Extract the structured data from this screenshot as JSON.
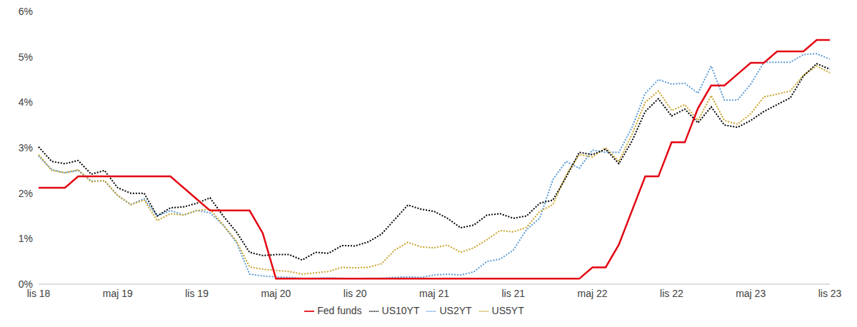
{
  "chart_data": {
    "type": "line",
    "categories": [
      "lis 18",
      null,
      null,
      null,
      null,
      null,
      "maj 19",
      null,
      null,
      null,
      null,
      null,
      "lis 19",
      null,
      null,
      null,
      null,
      null,
      "maj 20",
      null,
      null,
      null,
      null,
      null,
      "lis 20",
      null,
      null,
      null,
      null,
      null,
      "maj 21",
      null,
      null,
      null,
      null,
      null,
      "lis 21",
      null,
      null,
      null,
      null,
      null,
      "maj 22",
      null,
      null,
      null,
      null,
      null,
      "lis 22",
      null,
      null,
      null,
      null,
      null,
      "maj 23",
      null,
      null,
      null,
      null,
      null,
      "lis 23"
    ],
    "series": [
      {
        "name": "US2YT",
        "color": "#5b9bd5",
        "line_style": "dotted",
        "values": [
          2.82,
          2.52,
          2.45,
          2.5,
          2.27,
          2.27,
          1.95,
          1.75,
          1.88,
          1.5,
          1.62,
          1.52,
          1.62,
          1.57,
          1.3,
          0.92,
          0.22,
          0.18,
          0.16,
          0.15,
          0.13,
          0.13,
          0.14,
          0.13,
          0.12,
          0.13,
          0.13,
          0.15,
          0.16,
          0.15,
          0.2,
          0.22,
          0.2,
          0.27,
          0.5,
          0.55,
          0.75,
          1.2,
          1.45,
          2.3,
          2.7,
          2.55,
          2.95,
          2.9,
          2.9,
          3.45,
          4.2,
          4.5,
          4.4,
          4.42,
          4.2,
          4.8,
          4.05,
          4.05,
          4.4,
          4.88,
          4.88,
          4.88,
          5.05,
          5.07,
          4.95
        ]
      },
      {
        "name": "US5YT",
        "color": "#c9a227",
        "line_style": "dotted",
        "values": [
          2.85,
          2.5,
          2.45,
          2.52,
          2.25,
          2.28,
          1.95,
          1.75,
          1.85,
          1.4,
          1.55,
          1.52,
          1.62,
          1.65,
          1.3,
          0.95,
          0.38,
          0.33,
          0.3,
          0.28,
          0.22,
          0.25,
          0.28,
          0.37,
          0.36,
          0.37,
          0.45,
          0.75,
          0.92,
          0.82,
          0.8,
          0.86,
          0.7,
          0.8,
          0.98,
          1.18,
          1.15,
          1.25,
          1.6,
          1.75,
          2.4,
          2.85,
          2.8,
          3.0,
          2.7,
          3.3,
          4.0,
          4.25,
          3.82,
          3.95,
          3.6,
          4.15,
          3.6,
          3.52,
          3.75,
          4.12,
          4.18,
          4.25,
          4.6,
          4.8,
          4.65
        ]
      },
      {
        "name": "US10YT",
        "color": "#000000",
        "line_style": "dotted",
        "values": [
          3.02,
          2.7,
          2.65,
          2.72,
          2.42,
          2.5,
          2.12,
          2.0,
          2.0,
          1.5,
          1.68,
          1.7,
          1.78,
          1.9,
          1.5,
          1.15,
          0.7,
          0.63,
          0.65,
          0.65,
          0.53,
          0.7,
          0.68,
          0.85,
          0.84,
          0.93,
          1.1,
          1.42,
          1.74,
          1.65,
          1.6,
          1.45,
          1.24,
          1.3,
          1.52,
          1.55,
          1.45,
          1.5,
          1.78,
          1.85,
          2.35,
          2.9,
          2.85,
          2.97,
          2.65,
          3.15,
          3.8,
          4.08,
          3.7,
          3.85,
          3.55,
          3.9,
          3.5,
          3.45,
          3.6,
          3.8,
          3.95,
          4.1,
          4.58,
          4.85,
          4.73
        ]
      },
      {
        "name": "Fed funds",
        "color": "#e30613",
        "line_style": "solid",
        "values": [
          2.12,
          2.12,
          2.12,
          2.37,
          2.37,
          2.37,
          2.37,
          2.37,
          2.37,
          2.37,
          2.37,
          2.12,
          1.87,
          1.62,
          1.62,
          1.62,
          1.62,
          1.12,
          0.12,
          0.12,
          0.12,
          0.12,
          0.12,
          0.12,
          0.12,
          0.12,
          0.12,
          0.12,
          0.12,
          0.12,
          0.12,
          0.12,
          0.12,
          0.12,
          0.12,
          0.12,
          0.12,
          0.12,
          0.12,
          0.12,
          0.12,
          0.12,
          0.37,
          0.37,
          0.87,
          1.62,
          2.37,
          2.37,
          3.12,
          3.12,
          3.87,
          4.37,
          4.37,
          4.62,
          4.87,
          4.87,
          5.12,
          5.12,
          5.12,
          5.37,
          5.37
        ]
      }
    ],
    "ylim": [
      0,
      6
    ],
    "yticks": [
      {
        "value": 0,
        "label": "0%"
      },
      {
        "value": 1,
        "label": "1%"
      },
      {
        "value": 2,
        "label": "2%"
      },
      {
        "value": 3,
        "label": "3%"
      },
      {
        "value": 4,
        "label": "4%"
      },
      {
        "value": 5,
        "label": "5%"
      },
      {
        "value": 6,
        "label": "6%"
      }
    ],
    "grid": false,
    "legend": "bottom"
  }
}
